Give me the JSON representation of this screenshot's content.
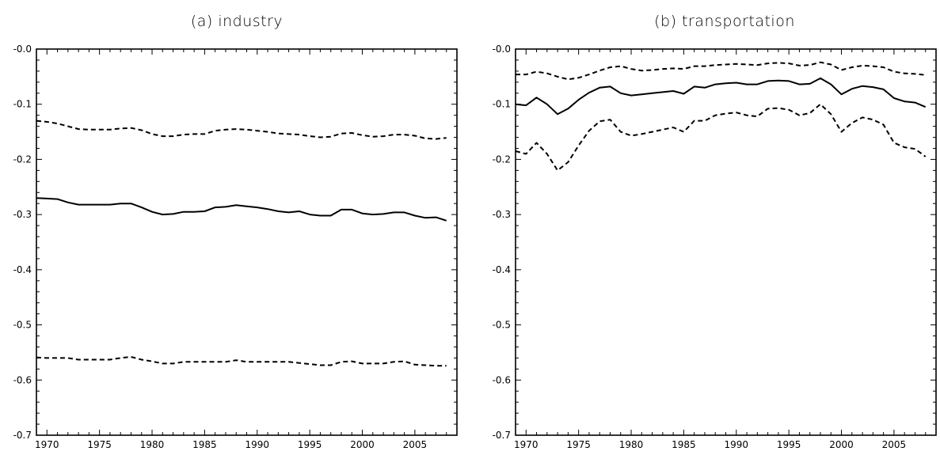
{
  "chart_data": [
    {
      "type": "line",
      "title": "(a) industry",
      "xlabel": "",
      "ylabel": "",
      "xlim": [
        1969,
        2009
      ],
      "ylim": [
        -0.7,
        0.0
      ],
      "grid": false,
      "x_ticks": [
        1970,
        1975,
        1980,
        1985,
        1990,
        1995,
        2000,
        2005
      ],
      "y_ticks": [
        -0.0,
        -0.1,
        -0.2,
        -0.3,
        -0.4,
        -0.5,
        -0.6,
        -0.7
      ],
      "y_tick_labels": [
        "-0.0",
        "-0.1",
        "-0.2",
        "-0.3",
        "-0.4",
        "-0.5",
        "-0.6",
        "-0.7"
      ],
      "x": [
        1969,
        1970,
        1971,
        1972,
        1973,
        1974,
        1975,
        1976,
        1977,
        1978,
        1979,
        1980,
        1981,
        1982,
        1983,
        1984,
        1985,
        1986,
        1987,
        1988,
        1989,
        1990,
        1991,
        1992,
        1993,
        1994,
        1995,
        1996,
        1997,
        1998,
        1999,
        2000,
        2001,
        2002,
        2003,
        2004,
        2005,
        2006,
        2007,
        2008
      ],
      "series": [
        {
          "style": "dashed",
          "values": [
            -0.13,
            -0.132,
            -0.135,
            -0.14,
            -0.145,
            -0.146,
            -0.146,
            -0.146,
            -0.144,
            -0.143,
            -0.147,
            -0.154,
            -0.158,
            -0.158,
            -0.155,
            -0.154,
            -0.154,
            -0.148,
            -0.146,
            -0.145,
            -0.146,
            -0.148,
            -0.15,
            -0.153,
            -0.154,
            -0.155,
            -0.158,
            -0.16,
            -0.159,
            -0.153,
            -0.152,
            -0.156,
            -0.159,
            -0.158,
            -0.155,
            -0.155,
            -0.157,
            -0.162,
            -0.163,
            -0.161
          ]
        },
        {
          "style": "solid",
          "values": [
            -0.27,
            -0.271,
            -0.272,
            -0.278,
            -0.282,
            -0.282,
            -0.282,
            -0.282,
            -0.28,
            -0.28,
            -0.287,
            -0.295,
            -0.3,
            -0.299,
            -0.295,
            -0.295,
            -0.294,
            -0.287,
            -0.286,
            -0.283,
            -0.285,
            -0.287,
            -0.29,
            -0.294,
            -0.296,
            -0.294,
            -0.3,
            -0.302,
            -0.302,
            -0.291,
            -0.291,
            -0.298,
            -0.3,
            -0.299,
            -0.296,
            -0.296,
            -0.302,
            -0.306,
            -0.305,
            -0.311
          ]
        },
        {
          "style": "dashed",
          "values": [
            -0.559,
            -0.56,
            -0.56,
            -0.56,
            -0.563,
            -0.563,
            -0.563,
            -0.563,
            -0.56,
            -0.558,
            -0.563,
            -0.566,
            -0.57,
            -0.57,
            -0.567,
            -0.567,
            -0.567,
            -0.567,
            -0.567,
            -0.564,
            -0.567,
            -0.567,
            -0.567,
            -0.567,
            -0.567,
            -0.569,
            -0.571,
            -0.573,
            -0.573,
            -0.567,
            -0.566,
            -0.57,
            -0.57,
            -0.57,
            -0.567,
            -0.566,
            -0.572,
            -0.573,
            -0.574,
            -0.574
          ]
        }
      ]
    },
    {
      "type": "line",
      "title": "(b) transportation",
      "xlabel": "",
      "ylabel": "",
      "xlim": [
        1969,
        2009
      ],
      "ylim": [
        -0.7,
        0.0
      ],
      "grid": false,
      "x_ticks": [
        1970,
        1975,
        1980,
        1985,
        1990,
        1995,
        2000,
        2005
      ],
      "y_ticks": [
        -0.0,
        -0.1,
        -0.2,
        -0.3,
        -0.4,
        -0.5,
        -0.6,
        -0.7
      ],
      "y_tick_labels": [
        "-0.0",
        "-0.1",
        "-0.2",
        "-0.3",
        "-0.4",
        "-0.5",
        "-0.6",
        "-0.7"
      ],
      "x": [
        1969,
        1970,
        1971,
        1972,
        1973,
        1974,
        1975,
        1976,
        1977,
        1978,
        1979,
        1980,
        1981,
        1982,
        1983,
        1984,
        1985,
        1986,
        1987,
        1988,
        1989,
        1990,
        1991,
        1992,
        1993,
        1994,
        1995,
        1996,
        1997,
        1998,
        1999,
        2000,
        2001,
        2002,
        2003,
        2004,
        2005,
        2006,
        2007,
        2008
      ],
      "series": [
        {
          "style": "dashed",
          "values": [
            -0.046,
            -0.046,
            -0.041,
            -0.044,
            -0.05,
            -0.055,
            -0.052,
            -0.046,
            -0.039,
            -0.033,
            -0.031,
            -0.036,
            -0.039,
            -0.038,
            -0.036,
            -0.035,
            -0.036,
            -0.031,
            -0.031,
            -0.029,
            -0.028,
            -0.027,
            -0.028,
            -0.029,
            -0.026,
            -0.025,
            -0.026,
            -0.03,
            -0.029,
            -0.024,
            -0.028,
            -0.038,
            -0.033,
            -0.03,
            -0.031,
            -0.033,
            -0.041,
            -0.044,
            -0.045,
            -0.047
          ]
        },
        {
          "style": "solid",
          "values": [
            -0.1,
            -0.102,
            -0.088,
            -0.1,
            -0.118,
            -0.108,
            -0.092,
            -0.079,
            -0.07,
            -0.068,
            -0.08,
            -0.084,
            -0.082,
            -0.08,
            -0.078,
            -0.076,
            -0.081,
            -0.068,
            -0.07,
            -0.064,
            -0.062,
            -0.061,
            -0.064,
            -0.064,
            -0.058,
            -0.057,
            -0.058,
            -0.064,
            -0.063,
            -0.053,
            -0.064,
            -0.082,
            -0.072,
            -0.067,
            -0.069,
            -0.073,
            -0.089,
            -0.095,
            -0.097,
            -0.105
          ]
        },
        {
          "style": "dashed",
          "values": [
            -0.185,
            -0.19,
            -0.17,
            -0.19,
            -0.22,
            -0.205,
            -0.175,
            -0.148,
            -0.131,
            -0.128,
            -0.15,
            -0.157,
            -0.154,
            -0.15,
            -0.146,
            -0.142,
            -0.15,
            -0.13,
            -0.13,
            -0.12,
            -0.117,
            -0.115,
            -0.12,
            -0.122,
            -0.108,
            -0.107,
            -0.11,
            -0.12,
            -0.116,
            -0.1,
            -0.118,
            -0.15,
            -0.134,
            -0.124,
            -0.128,
            -0.137,
            -0.17,
            -0.178,
            -0.181,
            -0.195
          ]
        }
      ]
    }
  ]
}
